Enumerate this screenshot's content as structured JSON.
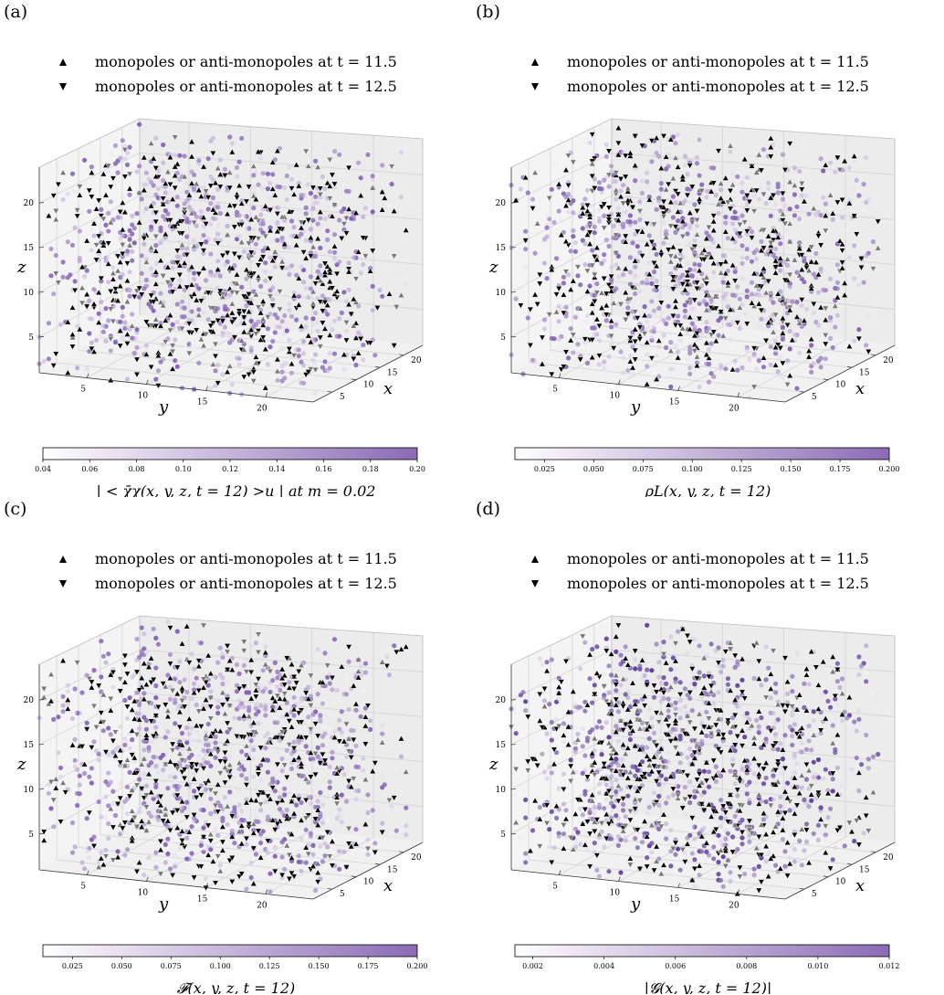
{
  "chart_data": [
    {
      "panel_label": "(a)",
      "type": "scatter",
      "projection": "3d",
      "legend": [
        "monopoles or anti-monopoles at t = 11.5",
        "monopoles or anti-monopoles at t = 12.5"
      ],
      "xlabel": "x",
      "ylabel": "y",
      "zlabel": "z",
      "x_ticks": [
        5,
        10,
        15,
        20
      ],
      "y_ticks": [
        5,
        10,
        15,
        20
      ],
      "z_ticks": [
        5,
        10,
        15,
        20
      ],
      "colorbar": {
        "label": "| < χ̄χ(x, y, z, t = 12) >u | at m = 0.02",
        "min": 0.04,
        "max": 0.2,
        "ticks": [
          "0.04",
          "0.06",
          "0.08",
          "0.10",
          "0.12",
          "0.14",
          "0.16",
          "0.18",
          "0.20"
        ],
        "colormap": [
          "#ffffff",
          "#8a6bb5"
        ]
      },
      "colors": {
        "up_marker": "#000000",
        "down_marker": "#000000",
        "point": "#7f5fb0"
      }
    },
    {
      "panel_label": "(b)",
      "type": "scatter",
      "projection": "3d",
      "legend": [
        "monopoles or anti-monopoles at t = 11.5",
        "monopoles or anti-monopoles at t = 12.5"
      ],
      "xlabel": "x",
      "ylabel": "y",
      "zlabel": "z",
      "x_ticks": [
        5,
        10,
        15,
        20
      ],
      "y_ticks": [
        5,
        10,
        15,
        20
      ],
      "z_ticks": [
        5,
        10,
        15,
        20
      ],
      "colorbar": {
        "label": "ρL(x, y, z, t = 12)",
        "min": 0.01,
        "max": 0.2,
        "ticks": [
          "0.025",
          "0.050",
          "0.075",
          "0.100",
          "0.125",
          "0.150",
          "0.175",
          "0.200"
        ],
        "colormap": [
          "#ffffff",
          "#8a6bb5"
        ]
      },
      "colors": {
        "up_marker": "#000000",
        "down_marker": "#000000",
        "point": "#7f5fb0"
      }
    },
    {
      "panel_label": "(c)",
      "type": "scatter",
      "projection": "3d",
      "legend": [
        "monopoles or anti-monopoles at t = 11.5",
        "monopoles or anti-monopoles at t = 12.5"
      ],
      "xlabel": "x",
      "ylabel": "y",
      "zlabel": "z",
      "x_ticks": [
        5,
        10,
        15,
        20
      ],
      "y_ticks": [
        5,
        10,
        15,
        20
      ],
      "z_ticks": [
        5,
        10,
        15,
        20
      ],
      "colorbar": {
        "label": "𝓕(x, y, z, t = 12)",
        "min": 0.01,
        "max": 0.2,
        "ticks": [
          "0.025",
          "0.050",
          "0.075",
          "0.100",
          "0.125",
          "0.150",
          "0.175",
          "0.200"
        ],
        "colormap": [
          "#ffffff",
          "#8a6bb5"
        ]
      },
      "colors": {
        "up_marker": "#000000",
        "down_marker": "#000000",
        "point": "#7f5fb0"
      }
    },
    {
      "panel_label": "(d)",
      "type": "scatter",
      "projection": "3d",
      "legend": [
        "monopoles or anti-monopoles at t = 11.5",
        "monopoles or anti-monopoles at t = 12.5"
      ],
      "xlabel": "x",
      "ylabel": "y",
      "zlabel": "z",
      "x_ticks": [
        5,
        10,
        15,
        20
      ],
      "y_ticks": [
        5,
        10,
        15,
        20
      ],
      "z_ticks": [
        5,
        10,
        15,
        20
      ],
      "colorbar": {
        "label": "|𝓖(x, y, z, t = 12)|",
        "min": 0.0015,
        "max": 0.012,
        "ticks": [
          "0.002",
          "0.004",
          "0.006",
          "0.008",
          "0.010",
          "0.012"
        ],
        "colormap": [
          "#ffffff",
          "#8a6bb5"
        ]
      },
      "colors": {
        "up_marker": "#000000",
        "down_marker": "#000000",
        "point": "#5a3a96"
      }
    }
  ]
}
